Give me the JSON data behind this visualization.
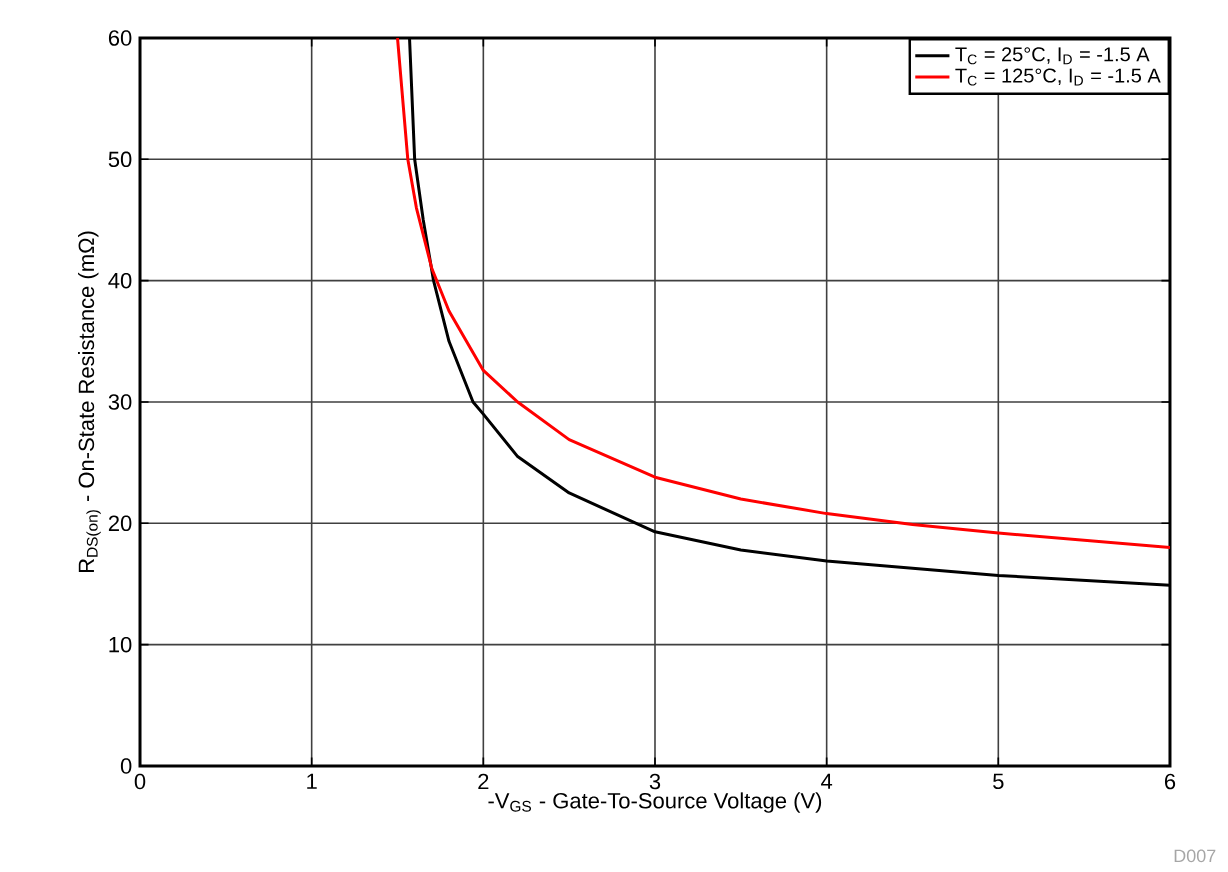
{
  "chart_data": {
    "type": "line",
    "xlabel": "-V$_{GS}$ - Gate-To-Source Voltage (V)",
    "ylabel": "R$_{DS(on)}$ - On-State Resistance (mΩ)",
    "xlim": [
      0,
      6
    ],
    "ylim": [
      0,
      60
    ],
    "xticks": [
      0,
      1,
      2,
      3,
      4,
      5,
      6
    ],
    "yticks": [
      0,
      10,
      20,
      30,
      40,
      50,
      60
    ],
    "grid": true,
    "legend": "top right",
    "marker": "none",
    "line_style": "solid",
    "annotations": [
      "D007"
    ],
    "series": [
      {
        "name": "T$_{C}$ = 25°C, I$_{D}$ = -1.5 A",
        "color": "#000000",
        "x": [
          1.57,
          1.6,
          1.65,
          1.71,
          1.8,
          1.94,
          2.0,
          2.2,
          2.5,
          3.0,
          3.5,
          4.0,
          5.0,
          6.0
        ],
        "values": [
          60,
          50,
          45,
          40,
          35,
          30,
          29,
          25.5,
          22.5,
          19.3,
          17.8,
          16.9,
          15.7,
          14.9
        ]
      },
      {
        "name": "T$_{C}$ = 125°C, I$_{D}$ = -1.5 A",
        "color": "#ff0000",
        "x": [
          1.5,
          1.56,
          1.61,
          1.7,
          1.8,
          2.0,
          2.2,
          2.5,
          3.0,
          3.5,
          4.0,
          4.5,
          5.0,
          6.0
        ],
        "values": [
          60,
          50,
          46,
          41,
          37.5,
          32.6,
          30,
          26.9,
          23.8,
          22.0,
          20.8,
          19.9,
          19.2,
          18.0
        ]
      }
    ]
  }
}
